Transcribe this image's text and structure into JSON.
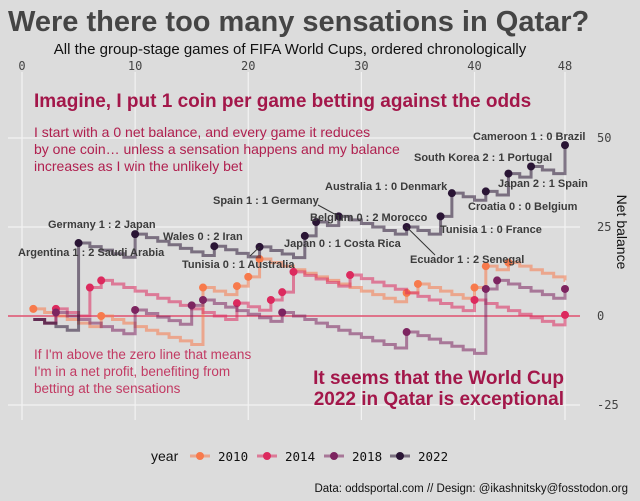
{
  "chart_data": {
    "type": "line",
    "title": "Were there too many sensations in Qatar?",
    "subtitle": "All the group-stage games of FIFA World Cups, ordered chronologically",
    "ylabel": "Net balance",
    "xlim": [
      0,
      48
    ],
    "ylim": [
      -25,
      50
    ],
    "x_ticks": [
      "0",
      "10",
      "20",
      "30",
      "40",
      "48"
    ],
    "x_tick_values": [
      0,
      10,
      20,
      30,
      40,
      48
    ],
    "y_ticks": [
      "50",
      "25",
      "0",
      "-25"
    ],
    "y_tick_values": [
      50,
      25,
      0,
      -25
    ],
    "grid": true,
    "legend": {
      "title": "year",
      "placement": "bottom"
    },
    "step_per_game": -1,
    "series": [
      {
        "name": "2010",
        "color": "#f77a4c",
        "sensations": [
          [
            1,
            2
          ],
          [
            7,
            0
          ],
          [
            16,
            8
          ],
          [
            19,
            8.4
          ],
          [
            20,
            11
          ],
          [
            21,
            16
          ],
          [
            34,
            6.5
          ],
          [
            35,
            9
          ],
          [
            40,
            8
          ],
          [
            41,
            14
          ],
          [
            43,
            15
          ]
        ]
      },
      {
        "name": "2014",
        "color": "#dc2a5e",
        "sensations": [
          [
            3,
            2
          ],
          [
            6,
            8
          ],
          [
            7,
            10
          ],
          [
            19,
            3.6
          ],
          [
            22,
            4.5
          ],
          [
            23,
            6.7
          ],
          [
            24,
            12.4
          ],
          [
            29,
            11.5
          ],
          [
            40,
            4.5
          ],
          [
            48,
            0.3
          ]
        ]
      },
      {
        "name": "2018",
        "color": "#7d2460",
        "sensations": [
          [
            3,
            1
          ],
          [
            10,
            1.7
          ],
          [
            15,
            3
          ],
          [
            16,
            4.5
          ],
          [
            23,
            1
          ],
          [
            34,
            -4.5
          ],
          [
            41,
            7.6
          ],
          [
            42,
            10
          ],
          [
            48,
            7.6
          ]
        ]
      },
      {
        "name": "2022",
        "color": "#2a1535",
        "sensations": [
          [
            5,
            20.5
          ],
          [
            10,
            23
          ],
          [
            17,
            19.6
          ],
          [
            21,
            19.4
          ],
          [
            25,
            22.5
          ],
          [
            26,
            26.4
          ],
          [
            28,
            28
          ],
          [
            34,
            25
          ],
          [
            37,
            28
          ],
          [
            38,
            34.5
          ],
          [
            41,
            35
          ],
          [
            43,
            40
          ],
          [
            45,
            42
          ],
          [
            48,
            48
          ]
        ]
      }
    ],
    "annotations": [
      {
        "game": 5,
        "text": "Argentina 1 : 2 Saudi Arabia"
      },
      {
        "game": 10,
        "text": "Germany 1 : 2 Japan"
      },
      {
        "game": 17,
        "text": "Wales 0 : 2 Iran"
      },
      {
        "game": 21,
        "text": "Tunisia 0 : 1 Australia"
      },
      {
        "game": 25,
        "text": "Japan 0 : 1 Costa Rica"
      },
      {
        "game": 26,
        "text": "Belgium 0 : 2 Morocco"
      },
      {
        "game": 28,
        "text": "Spain 1 : 1 Germany"
      },
      {
        "game": 34,
        "text": "Ecuador 1 : 2 Senegal"
      },
      {
        "game": 37,
        "text": "Tunisia 1 : 0 France"
      },
      {
        "game": 38,
        "text": "Australia 1 : 0 Denmark"
      },
      {
        "game": 41,
        "text": "Croatia 0 : 0 Belgium"
      },
      {
        "game": 43,
        "text": "Japan 2 : 1 Spain"
      },
      {
        "game": 45,
        "text": "South Korea 2 : 1 Portugal"
      },
      {
        "game": 48,
        "text": "Cameroon 1 : 0 Brazil"
      }
    ]
  },
  "text": {
    "heading": "Imagine, I put 1 coin per game betting against the odds",
    "intro": [
      "I start with a 0 net balance, and every game it reduces",
      "by one coin… unless a sensation happens and my balance",
      "increases as I win the unlikely bet"
    ],
    "zero_note": [
      "If I'm above the zero line that means",
      "I'm in a net profit, benefiting from",
      "betting at the sensations"
    ],
    "conclusion": [
      "It seems that the World Cup",
      "2022 in Qatar is exceptional"
    ],
    "caption": "Data: oddsportal.com // Design: @ikashnitsky@fosstodon.org"
  },
  "colors": {
    "background": "#dcdcdc",
    "zero_line": "#e0506e",
    "accent": "#a3174a"
  }
}
